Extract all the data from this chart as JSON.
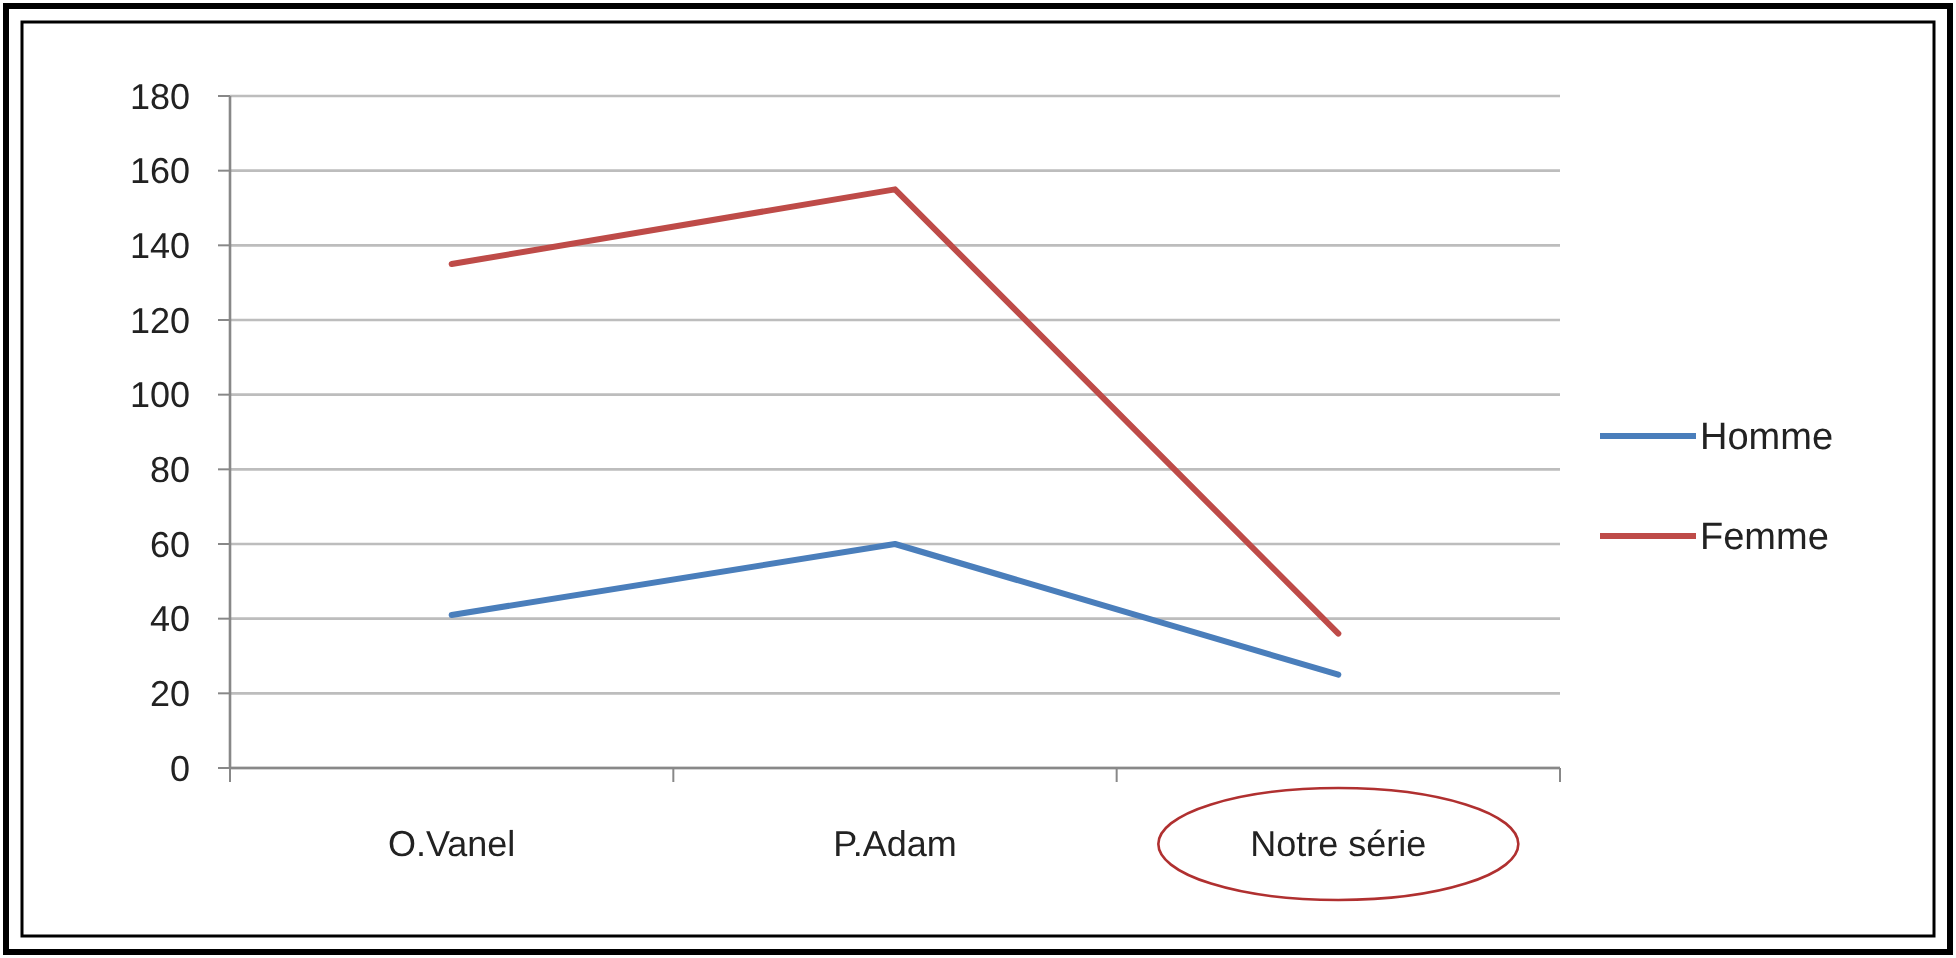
{
  "chart_data": {
    "type": "line",
    "categories": [
      "O.Vanel",
      "P.Adam",
      "Notre série"
    ],
    "series": [
      {
        "name": "Homme",
        "color": "#4a7ebb",
        "values": [
          41,
          60,
          25
        ]
      },
      {
        "name": "Femme",
        "color": "#be4b48",
        "values": [
          135,
          155,
          36
        ]
      }
    ],
    "ylim": [
      0,
      180
    ],
    "yticks": [
      0,
      20,
      40,
      60,
      80,
      100,
      120,
      140,
      160,
      180
    ],
    "grid": "y",
    "legend": "right",
    "marker": "none",
    "line_style": "solid"
  }
}
